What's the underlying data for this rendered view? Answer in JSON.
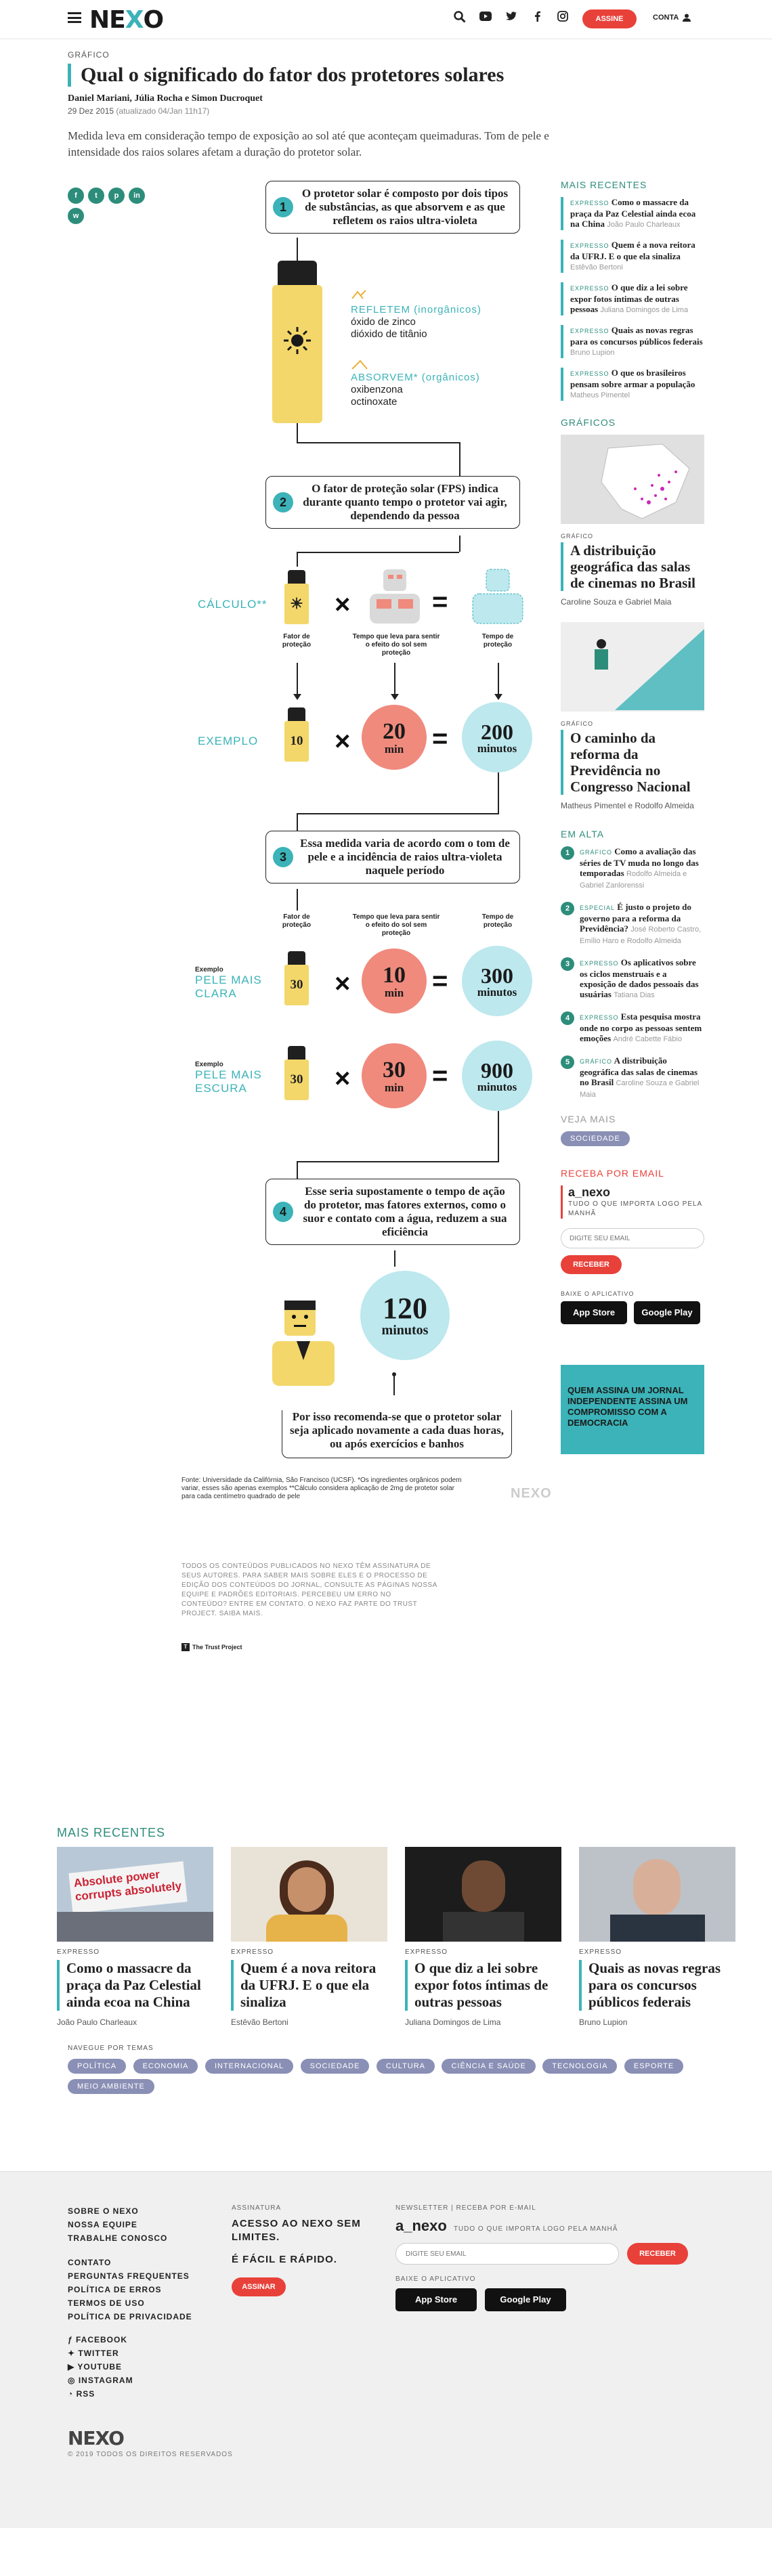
{
  "header": {
    "logo": "NEXO",
    "assine": "ASSINE",
    "conta": "CONTA",
    "icons": [
      "search-icon",
      "youtube-icon",
      "twitter-icon",
      "facebook-icon",
      "instagram-icon"
    ]
  },
  "article": {
    "kicker": "GRÁFICO",
    "title": "Qual o significado do fator dos protetores solares",
    "byline": "Daniel Mariani, Júlia Rocha e Simon Ducroquet",
    "date": "29 Dez 2015",
    "updated": "(atualizado 04/Jan 11h17)",
    "subtitle": "Medida leva em consideração tempo de exposição ao sol até que aconteçam queimaduras. Tom de pele e intensidade dos raios solares afetam a duração do protetor solar."
  },
  "share": [
    "f",
    "t",
    "p",
    "in",
    "w"
  ],
  "infographic": {
    "step1": {
      "n": "1",
      "text": "O protetor solar é composto por dois tipos de substâncias, as que absorvem e as que refletem os raios ultra-violeta"
    },
    "refletem": {
      "title": "REFLETEM (inorgânicos)",
      "items": [
        "óxido de zinco",
        "dióxido de titânio"
      ]
    },
    "absorvem": {
      "title": "ABSORVEM* (orgânicos)",
      "items": [
        "oxibenzona",
        "octinoxate"
      ]
    },
    "step2": {
      "n": "2",
      "text": "O fator de proteção solar (FPS) indica durante quanto tempo o protetor vai agir, dependendo da pessoa"
    },
    "calculo": "CÁLCULO**",
    "cap_fator": "Fator de proteção",
    "cap_tempo": "Tempo que leva para sentir o efeito do sol sem proteção",
    "cap_tempo_prot": "Tempo de proteção",
    "exemplo": "EXEMPLO",
    "ex_fps": "10",
    "ex_min": "20",
    "ex_res": "200",
    "unit_min": "min",
    "unit_minutos": "minutos",
    "step3": {
      "n": "3",
      "text": "Essa medida varia de acordo com o tom de pele e a incidência de raios ultra-violeta naquele período"
    },
    "exemplo_small": "Exemplo",
    "clara": "PELE MAIS CLARA",
    "clara_fps": "30",
    "clara_min": "10",
    "clara_res": "300",
    "escura": "PELE MAIS ESCURA",
    "escura_fps": "30",
    "escura_min": "30",
    "escura_res": "900",
    "step4": {
      "n": "4",
      "text": "Esse seria supostamente o tempo de ação do protetor, mas fatores externos, como o suor e contato com a água, reduzem a sua eficiência"
    },
    "final_num": "120",
    "final_unit": "minutos",
    "final_text": "Por isso recomenda-se que o protetor solar seja aplicado novamente a cada duas horas, ou após exercícios e banhos",
    "source": "Fonte: Universidade da Califórnia, São Francisco (UCSF). *Os ingredientes orgânicos podem variar, esses são apenas exemplos **Cálculo considera aplicação de 2mg de protetor solar para cada centímetro quadrado de pele",
    "watermark": "NEXO"
  },
  "trust": {
    "text": "TODOS OS CONTEÚDOS PUBLICADOS NO NEXO TÊM ASSINATURA DE SEUS AUTORES. PARA SABER MAIS SOBRE ELES E O PROCESSO DE EDIÇÃO DOS CONTEÚDOS DO JORNAL, CONSULTE AS PÁGINAS NOSSA EQUIPE E PADRÕES EDITORIAIS. PERCEBEU UM ERRO NO CONTEÚDO? ENTRE EM CONTATO. O NEXO FAZ PARTE DO TRUST PROJECT. SAIBA MAIS.",
    "logo": "The Trust Project"
  },
  "sidebar": {
    "recentes_title": "MAIS RECENTES",
    "recentes": [
      {
        "tag": "EXPRESSO",
        "title": "Como o massacre da praça da Paz Celestial ainda ecoa na China",
        "author": "João Paulo Charleaux"
      },
      {
        "tag": "EXPRESSO",
        "title": "Quem é a nova reitora da UFRJ. E o que ela sinaliza",
        "author": "Estêvão Bertoni"
      },
      {
        "tag": "EXPRESSO",
        "title": "O que diz a lei sobre expor fotos íntimas de outras pessoas",
        "author": "Juliana Domingos de Lima"
      },
      {
        "tag": "EXPRESSO",
        "title": "Quais as novas regras para os concursos públicos federais",
        "author": "Bruno Lupion"
      },
      {
        "tag": "EXPRESSO",
        "title": "O que os brasileiros pensam sobre armar a população",
        "author": "Matheus Pimentel"
      }
    ],
    "graficos_title": "GRÁFICOS",
    "graficos": [
      {
        "kicker": "GRÁFICO",
        "title": "A distribuição geográfica das salas de cinemas no Brasil",
        "author": "Caroline Souza e Gabriel Maia"
      },
      {
        "kicker": "GRÁFICO",
        "title": "O caminho da reforma da Previdência no Congresso Nacional",
        "author": "Matheus Pimentel e Rodolfo Almeida"
      }
    ],
    "alta_title": "EM ALTA",
    "alta": [
      {
        "n": "1",
        "tag": "GRÁFICO",
        "title": "Como a avaliação das séries de TV muda no longo das temporadas",
        "author": "Rodolfo Almeida e Gabriel Zanlorenssi"
      },
      {
        "n": "2",
        "tag": "ESPECIAL",
        "title": "É justo o projeto do governo para a reforma da Previdência?",
        "author": "José Roberto Castro, Emílio Haro e Rodolfo Almeida"
      },
      {
        "n": "3",
        "tag": "EXPRESSO",
        "title": "Os aplicativos sobre os ciclos menstruais e a exposição de dados pessoais das usuárias",
        "author": "Tatiana Dias"
      },
      {
        "n": "4",
        "tag": "EXPRESSO",
        "title": "Esta pesquisa mostra onde no corpo as pessoas sentem emoções",
        "author": "André Cabette Fábio"
      },
      {
        "n": "5",
        "tag": "GRÁFICO",
        "title": "A distribuição geográfica das salas de cinemas no Brasil",
        "author": "Caroline Souza e Gabriel Maia"
      }
    ],
    "veja_title": "VEJA MAIS",
    "veja_pill": "SOCIEDADE",
    "email_title": "RECEBA POR EMAIL",
    "anexo": "a_nexo",
    "anexo_desc": "TUDO O QUE IMPORTA LOGO PELA MANHÃ",
    "email_placeholder": "DIGITE SEU EMAIL",
    "receber": "RECEBER",
    "app_title": "BAIXE O APLICATIVO",
    "appstore": "App Store",
    "googleplay": "Google Play",
    "banner": "QUEM ASSINA UM JORNAL INDEPENDENTE ASSINA UM COMPROMISSO COM A DEMOCRACIA"
  },
  "bottom": {
    "title": "MAIS RECENTES",
    "cards": [
      {
        "kicker": "EXPRESSO",
        "title": "Como o massacre da praça da Paz Celestial ainda ecoa na China",
        "author": "João Paulo Charleaux",
        "img": "protest"
      },
      {
        "kicker": "EXPRESSO",
        "title": "Quem é a nova reitora da UFRJ. E o que ela sinaliza",
        "author": "Estêvão Bertoni",
        "img": "woman"
      },
      {
        "kicker": "EXPRESSO",
        "title": "O que diz a lei sobre expor fotos íntimas de outras pessoas",
        "author": "Juliana Domingos de Lima",
        "img": "player"
      },
      {
        "kicker": "EXPRESSO",
        "title": "Quais as novas regras para os concursos públicos federais",
        "author": "Bruno Lupion",
        "img": "man"
      }
    ],
    "protest_sign": "Absolute power corrupts absolutely",
    "temas_title": "NAVEGUE POR TEMAS",
    "temas": [
      "POLÍTICA",
      "ECONOMIA",
      "INTERNACIONAL",
      "SOCIEDADE",
      "CULTURA",
      "CIÊNCIA E SAÚDE",
      "TECNOLOGIA",
      "ESPORTE",
      "MEIO AMBIENTE"
    ]
  },
  "footer": {
    "links1": [
      "SOBRE O NEXO",
      "NOSSA EQUIPE",
      "TRABALHE CONOSCO"
    ],
    "links2": [
      "CONTATO",
      "PERGUNTAS FREQUENTES",
      "POLÍTICA DE ERROS",
      "TERMOS DE USO",
      "POLÍTICA DE PRIVACIDADE"
    ],
    "social": [
      "FACEBOOK",
      "TWITTER",
      "YOUTUBE",
      "INSTAGRAM",
      "RSS"
    ],
    "assinatura_h": "ASSINATURA",
    "assinatura_t1": "ACESSO AO NEXO SEM LIMITES.",
    "assinatura_t2": "É FÁCIL E RÁPIDO.",
    "assinar": "ASSINAR",
    "newsletter_h": "NEWSLETTER | RECEBA POR E-MAIL",
    "anexo": "a_nexo",
    "anexo_desc": "TUDO O QUE IMPORTA LOGO PELA MANHÃ",
    "email_placeholder": "DIGITE SEU EMAIL",
    "receber": "RECEBER",
    "app_h": "BAIXE O APLICATIVO",
    "appstore": "App Store",
    "googleplay": "Google Play",
    "logo": "NEXO",
    "copyright": "© 2019 TODOS OS DIREITOS RESERVADOS"
  }
}
